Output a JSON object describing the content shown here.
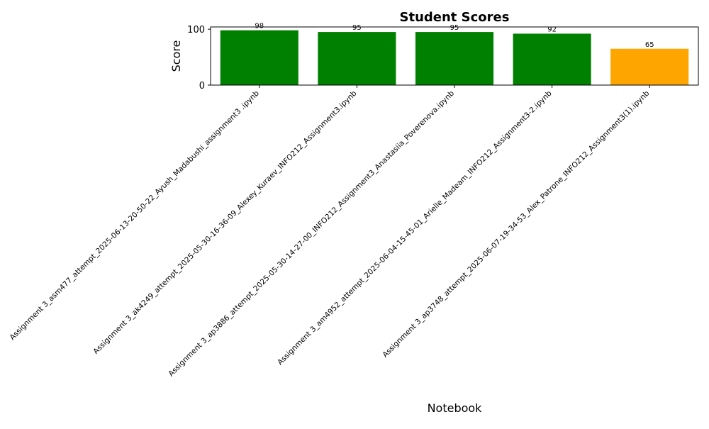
{
  "chart_data": {
    "type": "bar",
    "title": "Student Scores",
    "xlabel": "Notebook",
    "ylabel": "Score",
    "ylim": [
      0,
      104
    ],
    "yticks": [
      0,
      100
    ],
    "grid": false,
    "categories": [
      "Assignment 3_asm477_attempt_2025-06-13-20-50-22_Ayush_Madabushi_assignment3 .ipynb",
      "Assignment 3_ak4249_attempt_2025-05-30-16-36-09_Alexey_Kuraev_INFO212_Assignment3.ipynb",
      "Assignment 3_ap3886_attempt_2025-05-30-14-27-00_INFO212_Assignment3_Anastasiia_Poverenova.ipynb",
      "Assignment 3_am4952_attempt_2025-06-04-15-45-01_Arielle_Madeam_INFO212_Assignment3-2.ipynb",
      "Assignment 3_ap3748_attempt_2025-06-07-19-34-53_Alex_Patrone_INFO212_Assignment3(1).ipynb"
    ],
    "values": [
      98,
      95,
      95,
      92,
      65
    ],
    "bar_colors": [
      "#008000",
      "#008000",
      "#008000",
      "#008000",
      "#ffa500"
    ]
  }
}
